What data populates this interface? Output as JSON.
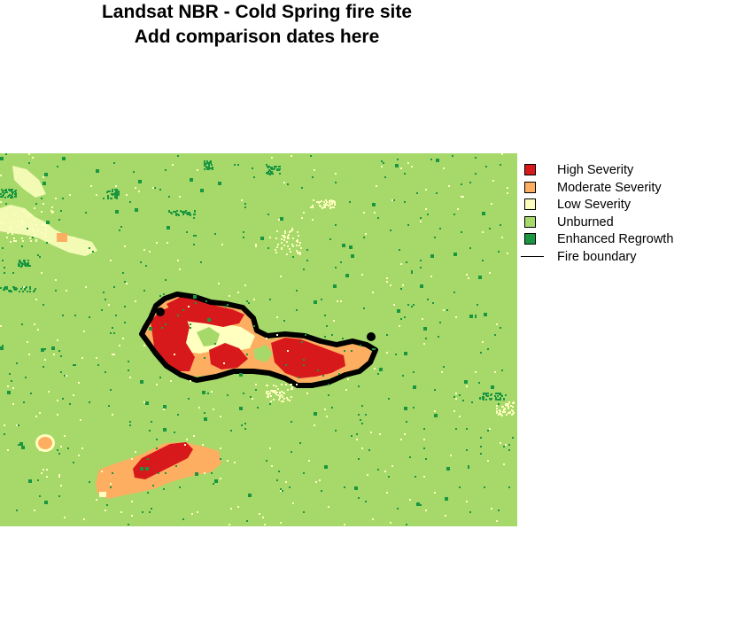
{
  "title": {
    "line1": "Landsat NBR - Cold Spring fire site",
    "line2": "Add comparison dates here"
  },
  "legend": [
    {
      "label": "High Severity",
      "color": "#d7191c",
      "kind": "fill"
    },
    {
      "label": "Moderate Severity",
      "color": "#fdae61",
      "kind": "fill"
    },
    {
      "label": "Low Severity",
      "color": "#ffffbf",
      "kind": "fill"
    },
    {
      "label": "Unburned",
      "color": "#a6d96a",
      "kind": "fill"
    },
    {
      "label": "Enhanced Regrowth",
      "color": "#1a9641",
      "kind": "fill"
    },
    {
      "label": "Fire boundary",
      "color": "#000000",
      "kind": "line"
    }
  ],
  "map": {
    "background_class": "Unburned",
    "classes": [
      "High Severity",
      "Moderate Severity",
      "Low Severity",
      "Unburned",
      "Enhanced Regrowth"
    ]
  }
}
